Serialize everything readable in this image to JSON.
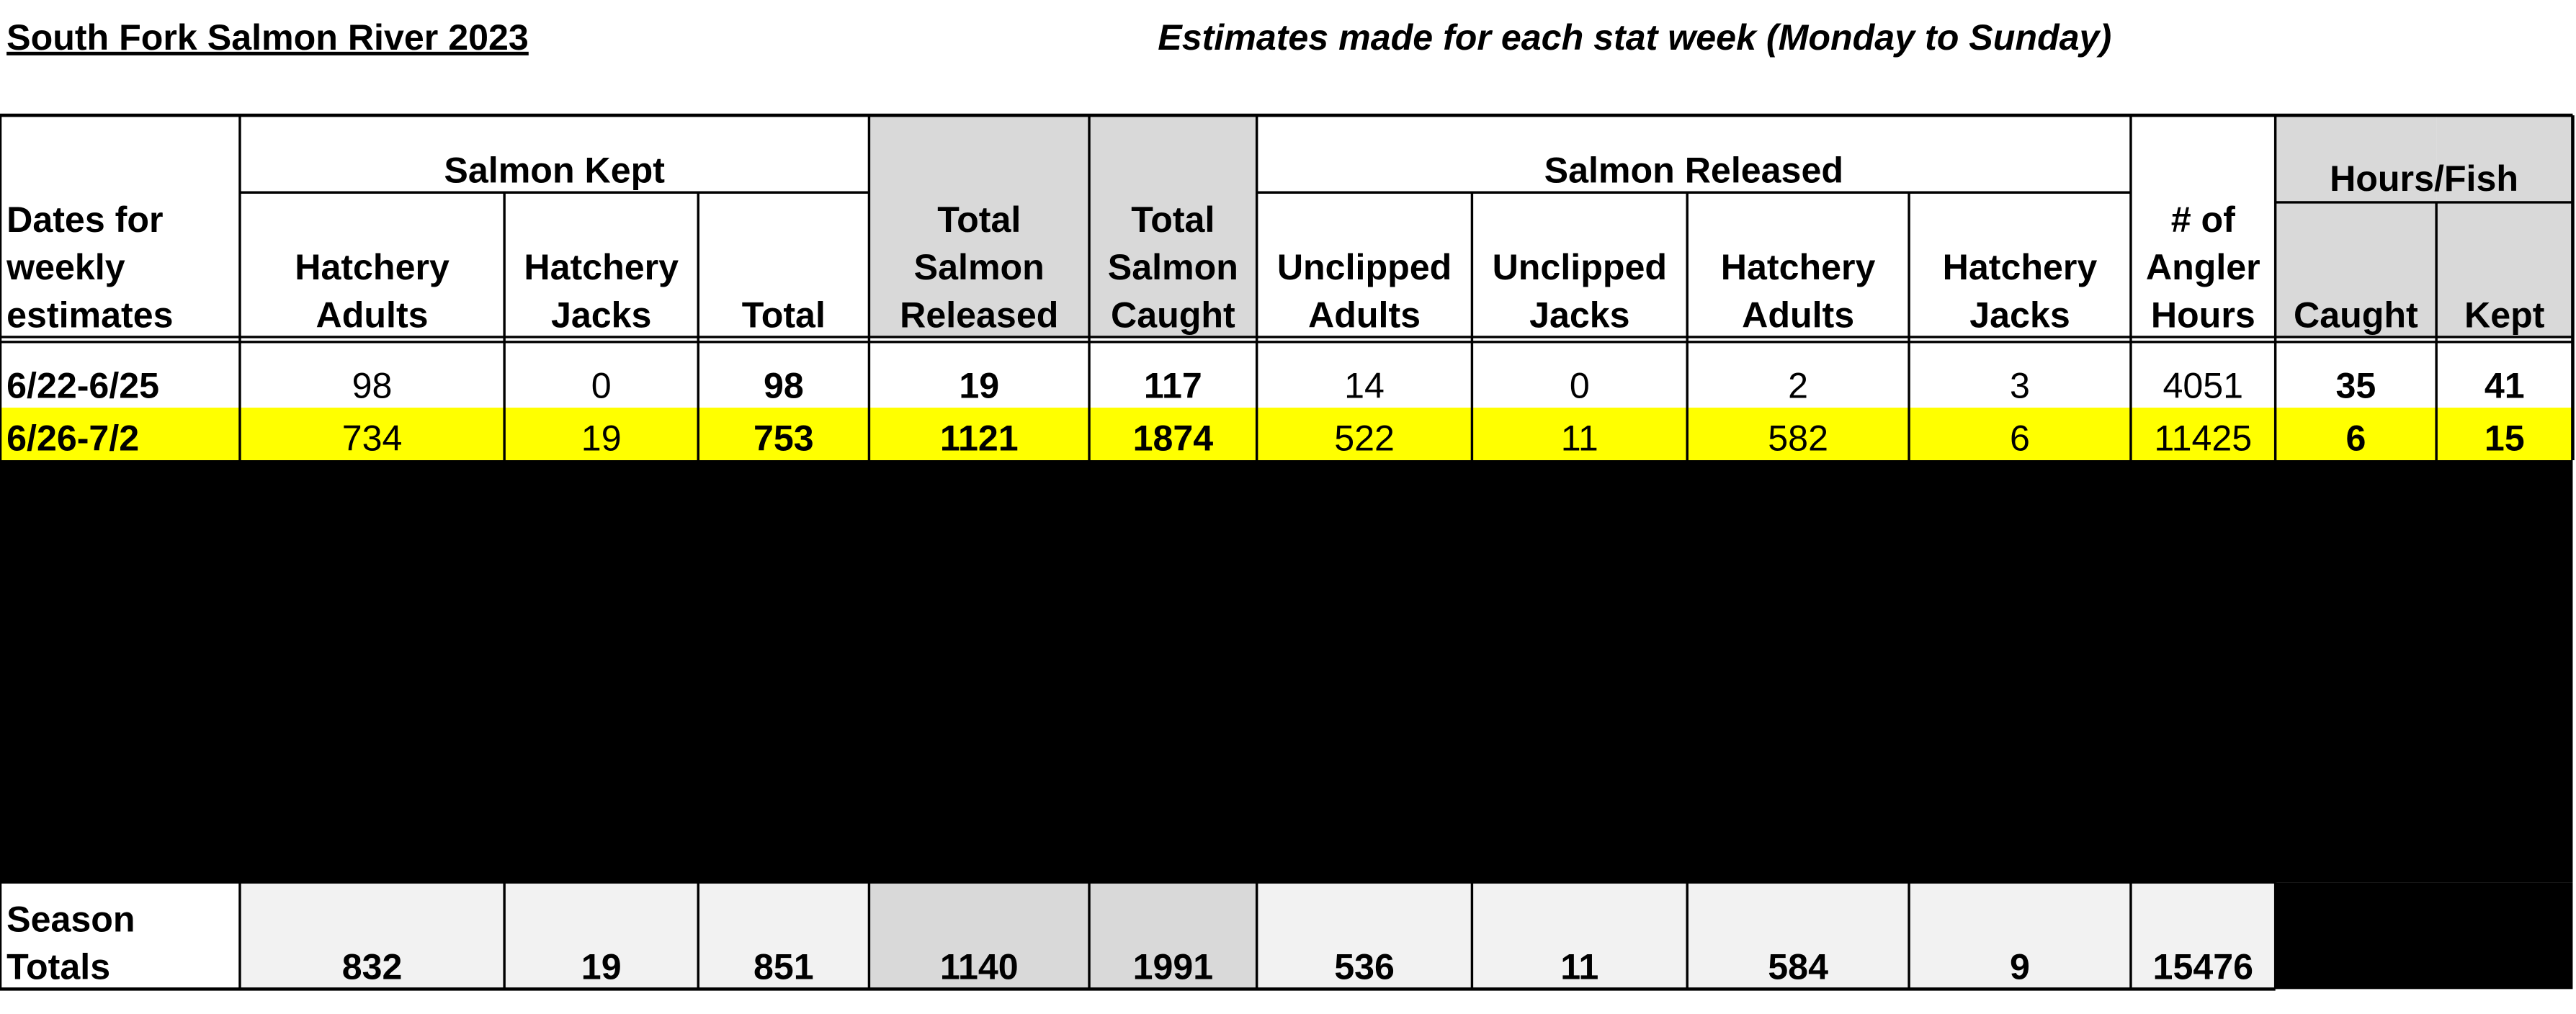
{
  "title": "South Fork Salmon River 2023",
  "subtitle": "Estimates made for each stat week (Monday to Sunday)",
  "table": {
    "groups": [
      {
        "label": "Salmon Kept",
        "from": 1,
        "to": 3
      },
      {
        "label": "Salmon Released",
        "from": 6,
        "to": 9
      },
      {
        "label": "Hours/Fish",
        "from": 11,
        "to": 12
      }
    ],
    "columns": [
      [
        "Dates for",
        "weekly",
        "estimates"
      ],
      [
        "Hatchery",
        "Adults"
      ],
      [
        "Hatchery",
        "Jacks"
      ],
      [
        "Total"
      ],
      [
        "Total",
        "Salmon",
        "Released"
      ],
      [
        "Total",
        "Salmon",
        "Caught"
      ],
      [
        "Unclipped",
        "Adults"
      ],
      [
        "Unclipped",
        "Jacks"
      ],
      [
        "Hatchery",
        "Adults"
      ],
      [
        "Hatchery",
        "Jacks"
      ],
      [
        "# of",
        "Angler",
        "Hours"
      ],
      [
        "Caught"
      ],
      [
        "Kept"
      ]
    ],
    "rows": [
      [
        "6/22-6/25",
        98,
        0,
        98,
        19,
        117,
        14,
        0,
        2,
        3,
        4051,
        35,
        41
      ],
      [
        "6/26-7/2",
        734,
        19,
        753,
        1121,
        1874,
        522,
        11,
        582,
        6,
        11425,
        6,
        15
      ]
    ],
    "totals": {
      "label": [
        "Season",
        "Totals"
      ],
      "values": [
        832,
        19,
        851,
        1140,
        1991,
        536,
        11,
        584,
        9,
        15476
      ]
    }
  }
}
